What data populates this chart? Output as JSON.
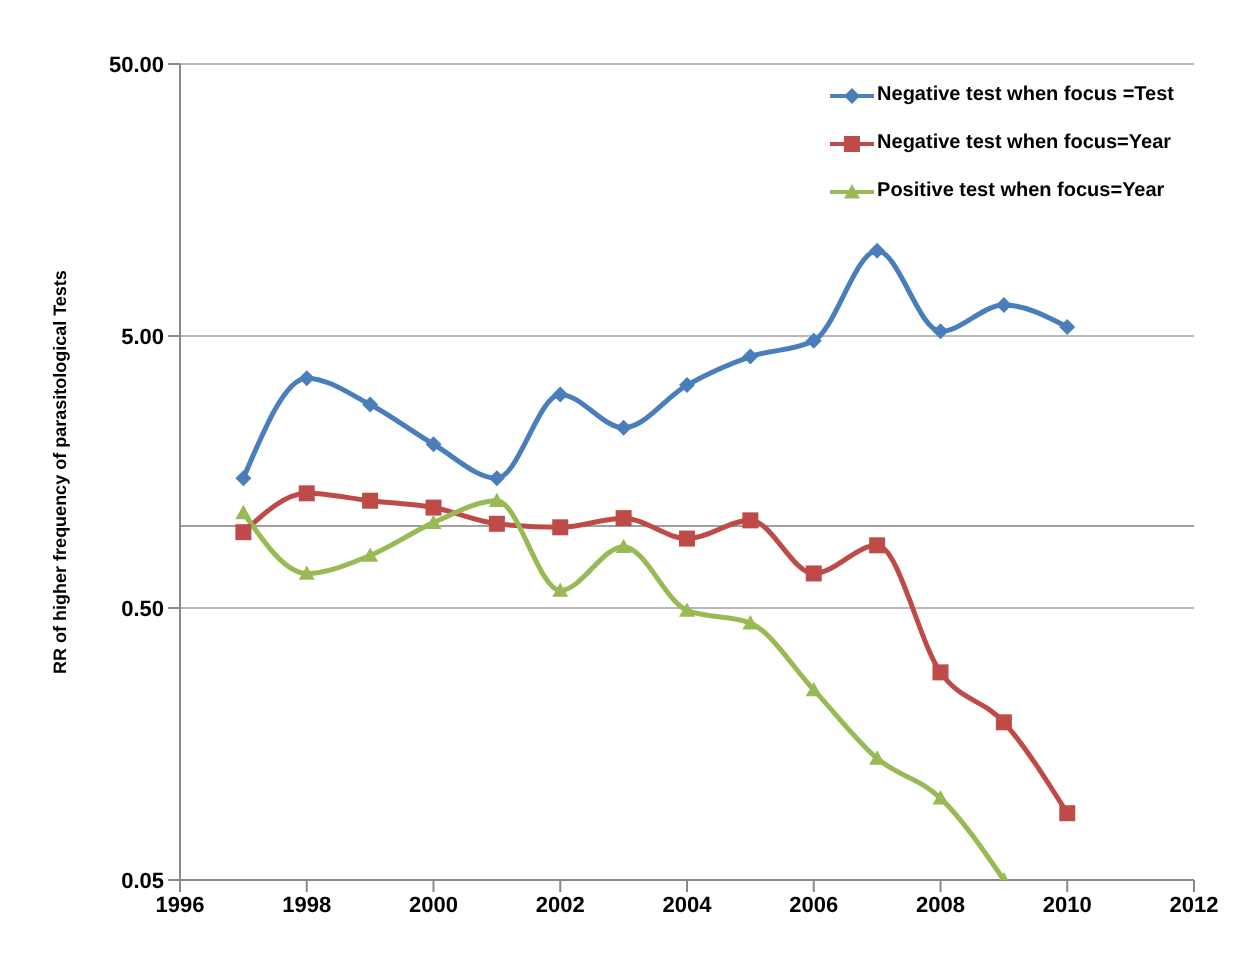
{
  "chart_data": {
    "type": "line",
    "ylabel": "RR of higher frequency of parasitological Tests",
    "log": "y",
    "x": [
      1997,
      1998,
      1999,
      2000,
      2001,
      2002,
      2003,
      2004,
      2005,
      2006,
      2007,
      2008,
      2009,
      2010
    ],
    "xlim": [
      1996,
      2012
    ],
    "xticks": [
      1996,
      1998,
      2000,
      2002,
      2004,
      2006,
      2008,
      2010,
      2012
    ],
    "ylim": [
      0.05,
      50
    ],
    "yticks": [
      {
        "value": 0.05,
        "label": "0.05"
      },
      {
        "value": 0.5,
        "label": "0.50"
      },
      {
        "value": 5,
        "label": "5.00"
      },
      {
        "value": 50,
        "label": "50.00"
      }
    ],
    "grid": "y",
    "legend": "top right",
    "ref_lines": [
      {
        "axis": "y",
        "value": 1,
        "color": "#a0a0a0"
      }
    ],
    "series": [
      {
        "name": "Negative test when focus =Test",
        "color": "#4a7ebb",
        "marker": "diamond",
        "values": [
          1.5,
          3.5,
          2.8,
          2.0,
          1.5,
          3.05,
          2.3,
          3.3,
          4.2,
          4.8,
          10.3,
          5.2,
          6.5,
          5.4
        ]
      },
      {
        "name": "Negative test when focus=Year",
        "color": "#be4b48",
        "marker": "square",
        "values": [
          0.95,
          1.32,
          1.24,
          1.17,
          1.02,
          0.99,
          1.07,
          0.9,
          1.05,
          0.67,
          0.85,
          0.29,
          0.19,
          0.088
        ]
      },
      {
        "name": "Positive test when focus=Year",
        "color": "#98b954",
        "marker": "triangle",
        "values": [
          1.12,
          0.67,
          0.78,
          1.03,
          1.24,
          0.58,
          0.84,
          0.49,
          0.44,
          0.25,
          0.14,
          0.1,
          0.05,
          null
        ]
      }
    ]
  }
}
